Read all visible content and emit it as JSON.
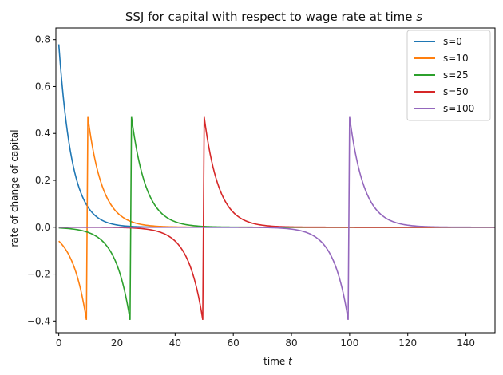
{
  "chart_data": {
    "type": "line",
    "title_prefix": "SSJ for capital with respect to wage rate at time ",
    "title_var": "s",
    "xlabel_prefix": "time ",
    "xlabel_var": "t",
    "ylabel": "rate of change of capital",
    "xlim": [
      -1,
      150
    ],
    "ylim": [
      -0.45,
      0.85
    ],
    "xticks": [
      0,
      20,
      40,
      60,
      80,
      100,
      120,
      140
    ],
    "yticks": [
      -0.4,
      -0.2,
      0.0,
      0.2,
      0.4,
      0.6,
      0.8
    ],
    "ytick_labels": [
      "−0.4",
      "−0.2",
      "0.0",
      "0.2",
      "0.4",
      "0.6",
      "0.8"
    ],
    "xtick_labels": [
      "0",
      "20",
      "40",
      "60",
      "80",
      "100",
      "120",
      "140"
    ],
    "legend_position": "top-right",
    "series": [
      {
        "name": "s=0",
        "color": "#1f77b4",
        "shock_time": 0,
        "peak": 0.78,
        "decay": 0.22,
        "trough": 0,
        "pre_decay": 0.2,
        "x_end": 150
      },
      {
        "name": "s=10",
        "color": "#ff7f0e",
        "shock_time": 10,
        "peak": 0.47,
        "decay": 0.2,
        "trough": -0.395,
        "pre_decay": 0.2,
        "x_end": 150
      },
      {
        "name": "s=25",
        "color": "#2ca02c",
        "shock_time": 25,
        "peak": 0.47,
        "decay": 0.2,
        "trough": -0.395,
        "pre_decay": 0.2,
        "x_end": 150
      },
      {
        "name": "s=50",
        "color": "#d62728",
        "shock_time": 50,
        "peak": 0.47,
        "decay": 0.2,
        "trough": -0.395,
        "pre_decay": 0.2,
        "x_end": 150
      },
      {
        "name": "s=100",
        "color": "#9467bd",
        "shock_time": 100,
        "peak": 0.47,
        "decay": 0.2,
        "trough": -0.395,
        "pre_decay": 0.2,
        "x_end": 150
      }
    ]
  }
}
